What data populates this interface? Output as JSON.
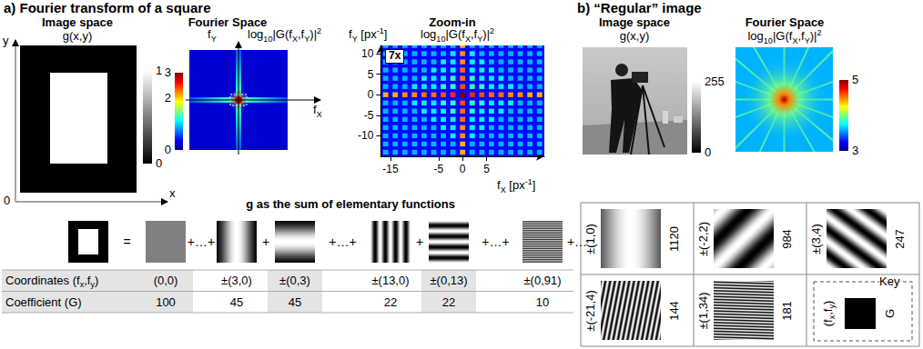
{
  "panel_a": {
    "title": "a) Fourier transform of a square",
    "image_space": {
      "title": "Image space",
      "label": [
        "g(x,y)"
      ],
      "x_axis": "x",
      "y_axis": "y",
      "origin": "0",
      "colorbar": {
        "range": [
          0,
          1
        ],
        "ticks": [
          0,
          1
        ]
      }
    },
    "fourier_space": {
      "title": "Fourier Space",
      "x_axis": [
        "f",
        {
          "sub": "X"
        }
      ],
      "y_axis": [
        "f",
        {
          "sub": "Y"
        }
      ],
      "label": [
        "log",
        {
          "sub": "10"
        },
        "|G(f",
        {
          "sub": "X"
        },
        ",f",
        {
          "sub": "Y"
        },
        ")|",
        {
          "sup": "2"
        }
      ],
      "colorbar": {
        "range": [
          0,
          3
        ],
        "ticks": [
          0,
          2,
          3
        ]
      }
    },
    "sum": {
      "title": "g as the sum of elementary functions",
      "operators": [
        "=",
        "+…+",
        "+",
        "+…+",
        "+",
        "+…+",
        "+…"
      ],
      "row_labels": [
        [
          "Coordinates (f",
          {
            "sub": "x"
          },
          ",f",
          {
            "sub": "y"
          },
          ")"
        ],
        [
          "Coefficient (G)"
        ]
      ],
      "terms": [
        {
          "label": "(0,0)",
          "fx": 0,
          "fy": 0,
          "G": 100
        },
        {
          "label": "±(3,0)",
          "fx": 3,
          "fy": 0,
          "G": 45
        },
        {
          "label": "±(0,3)",
          "fx": 0,
          "fy": 3,
          "G": 45
        },
        {
          "label": "±(13,0)",
          "fx": 13,
          "fy": 0,
          "G": 22
        },
        {
          "label": "±(0,13)",
          "fx": 0,
          "fy": 13,
          "G": 22
        },
        {
          "label": "±(0,91)",
          "fx": 0,
          "fy": 91,
          "G": 10
        }
      ]
    }
  },
  "chart_data": {
    "type": "heatmap",
    "title": "Zoom-in",
    "annotation": "7x",
    "x_label": [
      "f",
      {
        "sub": "X"
      },
      " [px",
      {
        "sup": "-1"
      },
      "]"
    ],
    "y_label": [
      "f",
      {
        "sub": "Y"
      },
      " [px",
      {
        "sup": "-1"
      },
      "]"
    ],
    "color_label": [
      "log",
      {
        "sub": "10"
      },
      "|G(f",
      {
        "sub": "X"
      },
      ",f",
      {
        "sub": "Y"
      },
      ")|",
      {
        "sup": "2"
      }
    ],
    "xlim": [
      -17,
      17
    ],
    "ylim": [
      -15,
      12
    ],
    "xticks": [
      -15,
      -5,
      0,
      5
    ],
    "yticks": [
      -10,
      -5,
      0,
      5,
      10
    ],
    "color_range": [
      0,
      3
    ],
    "background": 0.4,
    "x": [
      -16,
      -14,
      -12,
      -10,
      -8,
      -6,
      -4,
      -2,
      0,
      2,
      4,
      6,
      8,
      10,
      12,
      14,
      16
    ],
    "y": [
      12,
      10,
      8,
      6,
      4,
      2,
      0,
      -2,
      -4,
      -6,
      -8,
      -10,
      -12,
      -14
    ],
    "cells": [
      [
        0.9,
        0.9,
        0.9,
        0.9,
        0.9,
        0.9,
        0.9,
        0.9,
        2.1,
        0.9,
        0.9,
        0.9,
        0.9,
        0.9,
        0.9,
        0.9,
        0.9
      ],
      [
        0.9,
        0.9,
        0.9,
        0.9,
        0.9,
        0.9,
        0.9,
        1.1,
        2.2,
        1.1,
        0.9,
        0.9,
        0.9,
        0.9,
        0.9,
        0.9,
        0.9
      ],
      [
        0.9,
        0.9,
        0.9,
        0.9,
        0.9,
        0.9,
        1.1,
        1.1,
        2.2,
        1.1,
        1.1,
        0.9,
        0.9,
        0.9,
        0.9,
        0.9,
        0.9
      ],
      [
        0.9,
        0.9,
        0.9,
        0.9,
        0.9,
        1.1,
        1.1,
        1.1,
        2.3,
        1.1,
        1.1,
        1.1,
        0.9,
        0.9,
        0.9,
        0.9,
        0.9
      ],
      [
        0.9,
        0.9,
        0.9,
        0.9,
        1.1,
        1.1,
        1.1,
        1.3,
        2.3,
        1.3,
        1.1,
        1.1,
        1.1,
        0.9,
        0.9,
        0.9,
        0.9
      ],
      [
        0.9,
        0.9,
        0.9,
        1.1,
        1.1,
        1.1,
        1.3,
        1.3,
        2.4,
        1.3,
        1.3,
        1.1,
        1.1,
        1.1,
        0.9,
        0.9,
        0.9
      ],
      [
        2.1,
        2.1,
        2.2,
        2.2,
        2.3,
        2.3,
        2.4,
        2.5,
        3.0,
        2.5,
        2.4,
        2.3,
        2.3,
        2.2,
        2.2,
        2.1,
        2.1
      ],
      [
        0.9,
        0.9,
        0.9,
        1.1,
        1.1,
        1.1,
        1.3,
        1.3,
        2.4,
        1.3,
        1.3,
        1.1,
        1.1,
        1.1,
        0.9,
        0.9,
        0.9
      ],
      [
        0.9,
        0.9,
        0.9,
        0.9,
        1.1,
        1.1,
        1.1,
        1.3,
        2.3,
        1.3,
        1.1,
        1.1,
        1.1,
        0.9,
        0.9,
        0.9,
        0.9
      ],
      [
        0.9,
        0.9,
        0.9,
        0.9,
        0.9,
        1.1,
        1.1,
        1.1,
        2.3,
        1.1,
        1.1,
        1.1,
        0.9,
        0.9,
        0.9,
        0.9,
        0.9
      ],
      [
        0.9,
        0.9,
        0.9,
        0.9,
        0.9,
        0.9,
        1.1,
        1.1,
        2.2,
        1.1,
        1.1,
        0.9,
        0.9,
        0.9,
        0.9,
        0.9,
        0.9
      ],
      [
        0.9,
        0.9,
        0.9,
        0.9,
        0.9,
        0.9,
        0.9,
        1.1,
        2.2,
        1.1,
        0.9,
        0.9,
        0.9,
        0.9,
        0.9,
        0.9,
        0.9
      ],
      [
        0.9,
        0.9,
        0.9,
        0.9,
        0.9,
        0.9,
        0.9,
        0.9,
        2.1,
        0.9,
        0.9,
        0.9,
        0.9,
        0.9,
        0.9,
        0.9,
        0.9
      ],
      [
        0.9,
        0.9,
        0.9,
        0.9,
        0.9,
        0.9,
        0.9,
        0.9,
        2.1,
        0.9,
        0.9,
        0.9,
        0.9,
        0.9,
        0.9,
        0.9,
        0.9
      ]
    ]
  },
  "panel_b": {
    "title": "b) “Regular” image",
    "image_space": {
      "title": "Image space",
      "label": [
        "g(x,y)"
      ],
      "colorbar": {
        "range": [
          0,
          255
        ],
        "ticks": [
          0,
          255
        ]
      }
    },
    "fourier_space": {
      "title": "Fourier Space",
      "label": [
        "log",
        {
          "sub": "10"
        },
        "|G(f",
        {
          "sub": "X"
        },
        ",f",
        {
          "sub": "Y"
        },
        ")|",
        {
          "sup": "2"
        }
      ],
      "colorbar": {
        "range": [
          3,
          5
        ],
        "ticks": [
          3,
          5
        ]
      }
    },
    "components": [
      {
        "label": "±(1,0)",
        "fx": 1,
        "fy": 0,
        "G": 1120
      },
      {
        "label": "±(-2,2)",
        "fx": -2,
        "fy": 2,
        "G": 984
      },
      {
        "label": "±(3,4)",
        "fx": 3,
        "fy": 4,
        "G": 247
      },
      {
        "label": "±(-21,4)",
        "fx": -21,
        "fy": 4,
        "G": 144
      },
      {
        "label": "±(1,34)",
        "fx": 1,
        "fy": 34,
        "G": 181
      }
    ],
    "key": {
      "title": "Key",
      "coordinates": [
        "(f",
        {
          "sub": "x"
        },
        ",f",
        {
          "sub": "y"
        },
        ")"
      ],
      "coefficient": "G"
    }
  }
}
